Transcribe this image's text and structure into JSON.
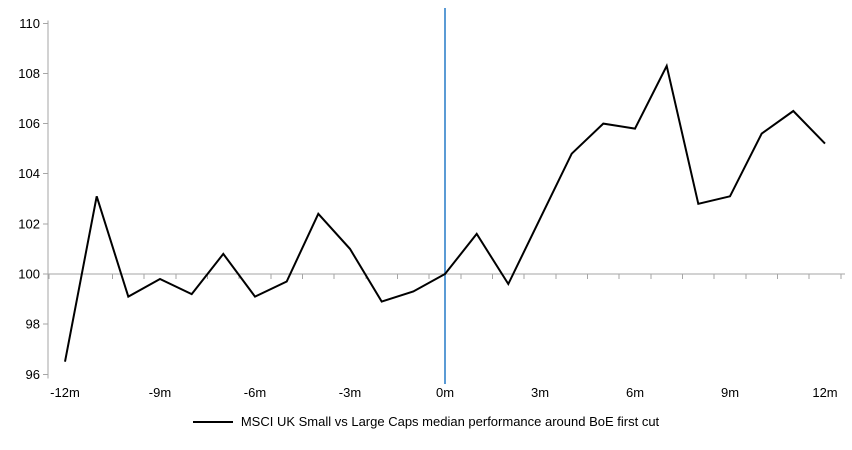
{
  "chart_data": {
    "type": "line",
    "xlabel": "",
    "ylabel": "",
    "categories": [
      -12,
      -11,
      -10,
      -9,
      -8,
      -7,
      -6,
      -5,
      -4,
      -3,
      -2,
      -1,
      0,
      1,
      2,
      3,
      4,
      5,
      6,
      7,
      8,
      9,
      10,
      11,
      12
    ],
    "series": [
      {
        "name": "MSCI UK Small vs Large Caps median performance around BoE first cut",
        "color": "#000000",
        "values": [
          96.5,
          103.1,
          99.1,
          99.8,
          99.2,
          100.8,
          99.1,
          99.7,
          102.4,
          101.0,
          98.9,
          99.3,
          100.0,
          101.6,
          99.6,
          102.2,
          104.8,
          106.0,
          105.8,
          108.3,
          102.8,
          103.1,
          105.6,
          106.5,
          105.2
        ]
      }
    ],
    "ylim": [
      96,
      110
    ],
    "yticks": [
      110,
      108,
      106,
      104,
      102,
      100,
      98,
      96
    ],
    "xticks": [
      {
        "label": "-12m",
        "value": -12
      },
      {
        "label": "-9m",
        "value": -9
      },
      {
        "label": "-6m",
        "value": -6
      },
      {
        "label": "-3m",
        "value": -3
      },
      {
        "label": "0m",
        "value": 0
      },
      {
        "label": "3m",
        "value": 3
      },
      {
        "label": "6m",
        "value": 6
      },
      {
        "label": "9m",
        "value": 9
      },
      {
        "label": "12m",
        "value": 12
      }
    ],
    "baseline_y": 100,
    "event_line_x": 0,
    "grid": "off",
    "legend_position": "bottom"
  },
  "colors": {
    "series_line": "#000000",
    "event_line": "#5B9BD5",
    "axis": "#a6a6a6",
    "text": "#000000",
    "background": "#ffffff"
  }
}
